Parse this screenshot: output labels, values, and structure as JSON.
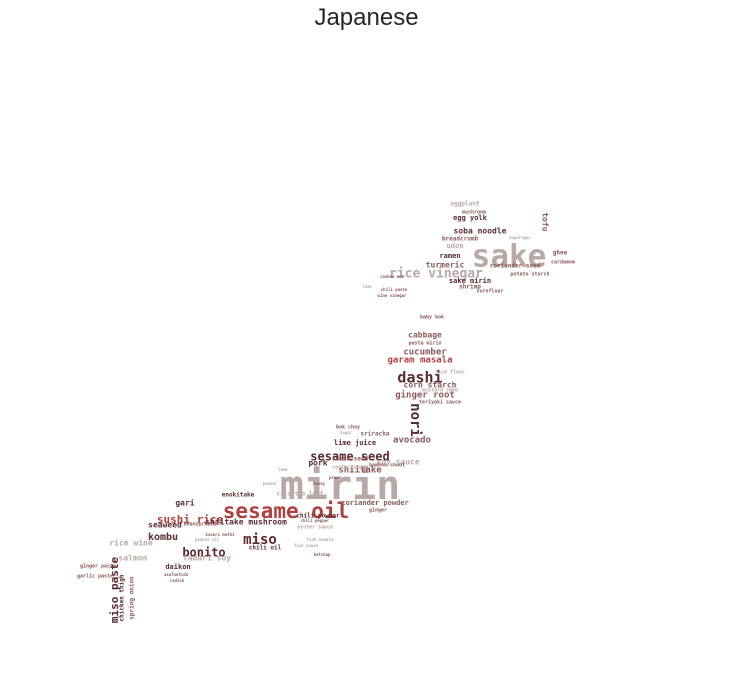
{
  "title": "Japanese",
  "colors": {
    "dark": "#5a2a2e",
    "red": "#b0413e",
    "mid": "#8a5a58",
    "light": "#b8a8a6",
    "pale": "#d2c6c4"
  },
  "words": [
    {
      "text": "mirin",
      "color": "light"
    },
    {
      "text": "sesame oil",
      "color": "red"
    },
    {
      "text": "sake",
      "color": "light"
    },
    {
      "text": "rice vinegar",
      "color": "light"
    },
    {
      "text": "dashi",
      "color": "dark"
    },
    {
      "text": "sesame seed",
      "color": "dark"
    },
    {
      "text": "miso",
      "color": "dark"
    },
    {
      "text": "nori",
      "color": "dark"
    },
    {
      "text": "bonito",
      "color": "dark"
    },
    {
      "text": "miso paste",
      "color": "dark"
    },
    {
      "text": "sushi rice",
      "color": "red"
    },
    {
      "text": "kombu",
      "color": "dark"
    },
    {
      "text": "shiitake mushroom",
      "color": "dark"
    },
    {
      "text": "shiitake",
      "color": "mid"
    },
    {
      "text": "avocado",
      "color": "mid"
    },
    {
      "text": "ginger root",
      "color": "mid"
    },
    {
      "text": "corn starch",
      "color": "mid"
    },
    {
      "text": "garam masala",
      "color": "red"
    },
    {
      "text": "cucumber",
      "color": "mid"
    },
    {
      "text": "cabbage",
      "color": "mid"
    },
    {
      "text": "soba noodle",
      "color": "dark"
    },
    {
      "text": "sake mirin",
      "color": "dark"
    },
    {
      "text": "ramen",
      "color": "dark"
    },
    {
      "text": "turmeric",
      "color": "mid"
    },
    {
      "text": "breadcrumb",
      "color": "mid"
    },
    {
      "text": "egg yolk",
      "color": "dark"
    },
    {
      "text": "eggplant",
      "color": "light"
    },
    {
      "text": "udon",
      "color": "light"
    },
    {
      "text": "tofu",
      "color": "mid"
    },
    {
      "text": "coriander seed",
      "color": "mid"
    },
    {
      "text": "potato starch",
      "color": "mid"
    },
    {
      "text": "shrimp",
      "color": "mid"
    },
    {
      "text": "ghee",
      "color": "mid"
    },
    {
      "text": "cardamom",
      "color": "mid"
    },
    {
      "text": "pork",
      "color": "dark"
    },
    {
      "text": "soy sauce",
      "color": "light"
    },
    {
      "text": "cumin seed",
      "color": "mid"
    },
    {
      "text": "lime juice",
      "color": "dark"
    },
    {
      "text": "sriracha",
      "color": "mid"
    },
    {
      "text": "bok choy",
      "color": "mid"
    },
    {
      "text": "chili powder",
      "color": "dark"
    },
    {
      "text": "coriander powder",
      "color": "mid"
    },
    {
      "text": "gari",
      "color": "dark"
    },
    {
      "text": "seaweed",
      "color": "dark"
    },
    {
      "text": "salmon",
      "color": "light"
    },
    {
      "text": "tamari soy",
      "color": "light"
    },
    {
      "text": "daikon",
      "color": "dark"
    },
    {
      "text": "chili oil",
      "color": "dark"
    },
    {
      "text": "rice wine",
      "color": "light"
    },
    {
      "text": "chicken thigh",
      "color": "dark"
    },
    {
      "text": "spring onion",
      "color": "mid"
    },
    {
      "text": "enokitake",
      "color": "dark"
    },
    {
      "text": "ginger paste",
      "color": "mid"
    },
    {
      "text": "garlic paste",
      "color": "mid"
    },
    {
      "text": "cilantro leaf",
      "color": "light"
    },
    {
      "text": "asafoetida",
      "color": "mid"
    },
    {
      "text": "radish",
      "color": "mid"
    },
    {
      "text": "cornflour",
      "color": "mid"
    },
    {
      "text": "teriyaki sauce",
      "color": "mid"
    },
    {
      "text": "mustard seed",
      "color": "light"
    },
    {
      "text": "rice flour",
      "color": "light"
    },
    {
      "text": "pasta mirin",
      "color": "mid"
    },
    {
      "text": "baby bok",
      "color": "mid"
    },
    {
      "text": "mushroom",
      "color": "mid"
    },
    {
      "text": "asparagus",
      "color": "light"
    },
    {
      "text": "cashew nut",
      "color": "mid"
    },
    {
      "text": "chili paste",
      "color": "mid"
    },
    {
      "text": "wine vinegar",
      "color": "mid"
    },
    {
      "text": "oyster sauce",
      "color": "light"
    },
    {
      "text": "caster sugar",
      "color": "light"
    },
    {
      "text": "bamboo shoot",
      "color": "mid"
    },
    {
      "text": "peanut oil",
      "color": "light"
    },
    {
      "text": "beansprouts",
      "color": "mid"
    },
    {
      "text": "kasuri methi",
      "color": "mid"
    },
    {
      "text": "fish sauce",
      "color": "light"
    },
    {
      "text": "ginger",
      "color": "mid"
    },
    {
      "text": "pepper",
      "color": "light"
    },
    {
      "text": "honey",
      "color": "mid"
    },
    {
      "text": "leek",
      "color": "light"
    },
    {
      "text": "panner",
      "color": "light"
    },
    {
      "text": "prawn",
      "color": "mid"
    },
    {
      "text": "fish noodle",
      "color": "light"
    },
    {
      "text": "ketchup",
      "color": "mid"
    },
    {
      "text": "lime",
      "color": "light"
    },
    {
      "text": "sugar",
      "color": "light"
    },
    {
      "text": "chili pepper",
      "color": "mid"
    }
  ]
}
